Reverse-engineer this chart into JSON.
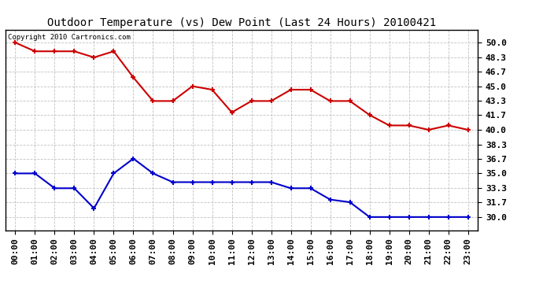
{
  "title": "Outdoor Temperature (vs) Dew Point (Last 24 Hours) 20100421",
  "copyright_text": "Copyright 2010 Cartronics.com",
  "x_labels": [
    "00:00",
    "01:00",
    "02:00",
    "03:00",
    "04:00",
    "05:00",
    "06:00",
    "07:00",
    "08:00",
    "09:00",
    "10:00",
    "11:00",
    "12:00",
    "13:00",
    "14:00",
    "15:00",
    "16:00",
    "17:00",
    "18:00",
    "19:00",
    "20:00",
    "21:00",
    "22:00",
    "23:00"
  ],
  "temp_data": [
    50.0,
    49.0,
    49.0,
    49.0,
    48.3,
    49.0,
    46.0,
    43.3,
    43.3,
    45.0,
    44.6,
    42.0,
    43.3,
    43.3,
    44.6,
    44.6,
    43.3,
    43.3,
    41.7,
    40.5,
    40.5,
    40.0,
    40.5,
    40.0
  ],
  "dew_data": [
    35.0,
    35.0,
    33.3,
    33.3,
    31.0,
    35.0,
    36.7,
    35.0,
    34.0,
    34.0,
    34.0,
    34.0,
    34.0,
    34.0,
    33.3,
    33.3,
    32.0,
    31.7,
    30.0,
    30.0,
    30.0,
    30.0,
    30.0,
    30.0
  ],
  "ylim": [
    28.5,
    51.5
  ],
  "yticks": [
    30.0,
    31.7,
    33.3,
    35.0,
    36.7,
    38.3,
    40.0,
    41.7,
    43.3,
    45.0,
    46.7,
    48.3,
    50.0
  ],
  "temp_color": "#cc0000",
  "dew_color": "#0000cc",
  "grid_color": "#bbbbbb",
  "bg_color": "#ffffff",
  "title_fontsize": 10,
  "tick_fontsize": 8,
  "copyright_fontsize": 6.5
}
